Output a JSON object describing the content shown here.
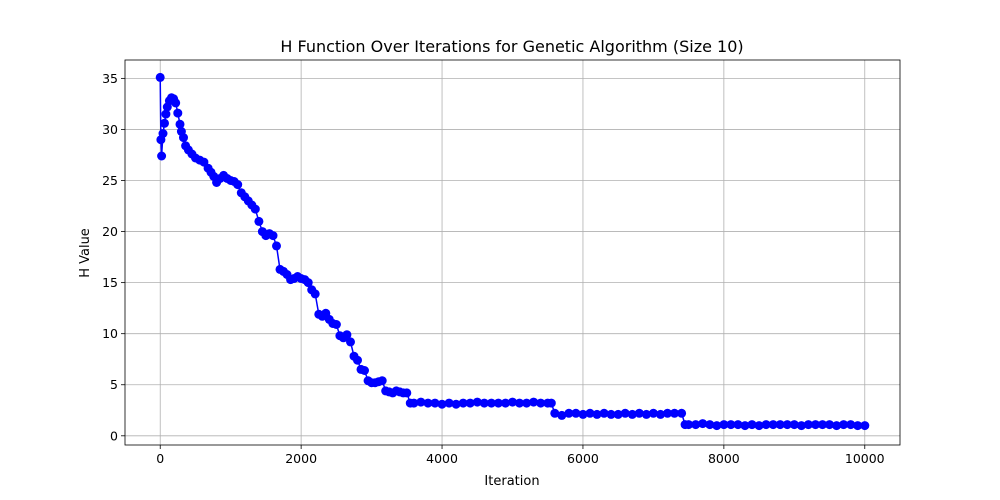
{
  "chart_data": {
    "type": "line",
    "title": "H Function Over Iterations for Genetic Algorithm (Size 10)",
    "xlabel": "Iteration",
    "ylabel": "H Value",
    "xlim": [
      -500,
      10500
    ],
    "ylim": [
      -0.9,
      36.8
    ],
    "xticks": [
      0,
      2000,
      4000,
      6000,
      8000,
      10000
    ],
    "xtick_labels": [
      "0",
      "2000",
      "4000",
      "6000",
      "8000",
      "10000"
    ],
    "yticks": [
      0,
      5,
      10,
      15,
      20,
      25,
      30,
      35
    ],
    "ytick_labels": [
      "0",
      "5",
      "10",
      "15",
      "20",
      "25",
      "30",
      "35"
    ],
    "grid": true,
    "series": [
      {
        "color": "#0000ff",
        "marker": "circle",
        "x": [
          0,
          10,
          20,
          40,
          60,
          80,
          100,
          130,
          160,
          190,
          220,
          250,
          280,
          300,
          330,
          360,
          400,
          450,
          500,
          560,
          620,
          680,
          720,
          760,
          800,
          850,
          900,
          950,
          1000,
          1050,
          1100,
          1150,
          1200,
          1250,
          1300,
          1350,
          1400,
          1450,
          1500,
          1550,
          1600,
          1650,
          1700,
          1750,
          1800,
          1850,
          1900,
          1950,
          2000,
          2050,
          2100,
          2150,
          2200,
          2250,
          2300,
          2350,
          2400,
          2450,
          2500,
          2550,
          2600,
          2650,
          2700,
          2750,
          2800,
          2850,
          2900,
          2950,
          3000,
          3050,
          3100,
          3150,
          3200,
          3250,
          3300,
          3350,
          3400,
          3450,
          3500,
          3550,
          3600,
          3700,
          3800,
          3900,
          4000,
          4100,
          4200,
          4300,
          4400,
          4500,
          4600,
          4700,
          4800,
          4900,
          5000,
          5100,
          5200,
          5300,
          5400,
          5500,
          5550,
          5600,
          5700,
          5800,
          5900,
          6000,
          6100,
          6200,
          6300,
          6400,
          6500,
          6600,
          6700,
          6800,
          6900,
          7000,
          7100,
          7200,
          7300,
          7400,
          7450,
          7500,
          7600,
          7700,
          7800,
          7900,
          8000,
          8100,
          8200,
          8300,
          8400,
          8500,
          8600,
          8700,
          8800,
          8900,
          9000,
          9100,
          9200,
          9300,
          9400,
          9500,
          9600,
          9700,
          9800,
          9900,
          10000
        ],
        "y": [
          35.1,
          29.0,
          27.4,
          29.6,
          30.6,
          31.5,
          32.2,
          32.8,
          33.1,
          33.0,
          32.6,
          31.6,
          30.5,
          29.8,
          29.2,
          28.4,
          28.0,
          27.6,
          27.2,
          27.0,
          26.8,
          26.2,
          25.8,
          25.4,
          24.8,
          25.2,
          25.5,
          25.2,
          25.0,
          24.9,
          24.6,
          23.8,
          23.4,
          23.0,
          22.6,
          22.2,
          21.0,
          20.0,
          19.6,
          19.8,
          19.6,
          18.6,
          16.3,
          16.1,
          15.8,
          15.3,
          15.4,
          15.6,
          15.4,
          15.3,
          15.0,
          14.3,
          13.9,
          11.9,
          11.7,
          12.0,
          11.4,
          11.0,
          10.9,
          9.8,
          9.6,
          9.9,
          9.2,
          7.8,
          7.4,
          6.5,
          6.4,
          5.4,
          5.2,
          5.2,
          5.3,
          5.4,
          4.4,
          4.3,
          4.2,
          4.4,
          4.3,
          4.2,
          4.2,
          3.2,
          3.2,
          3.3,
          3.2,
          3.2,
          3.1,
          3.2,
          3.1,
          3.2,
          3.2,
          3.3,
          3.2,
          3.2,
          3.2,
          3.2,
          3.3,
          3.2,
          3.2,
          3.3,
          3.2,
          3.2,
          3.2,
          2.2,
          2.0,
          2.2,
          2.2,
          2.1,
          2.2,
          2.1,
          2.2,
          2.1,
          2.1,
          2.2,
          2.1,
          2.2,
          2.1,
          2.2,
          2.1,
          2.2,
          2.2,
          2.2,
          1.1,
          1.1,
          1.1,
          1.2,
          1.1,
          1.0,
          1.1,
          1.1,
          1.1,
          1.0,
          1.1,
          1.0,
          1.1,
          1.1,
          1.1,
          1.1,
          1.1,
          1.0,
          1.1,
          1.1,
          1.1,
          1.1,
          1.0,
          1.1,
          1.1,
          1.0,
          1.0
        ]
      }
    ]
  }
}
